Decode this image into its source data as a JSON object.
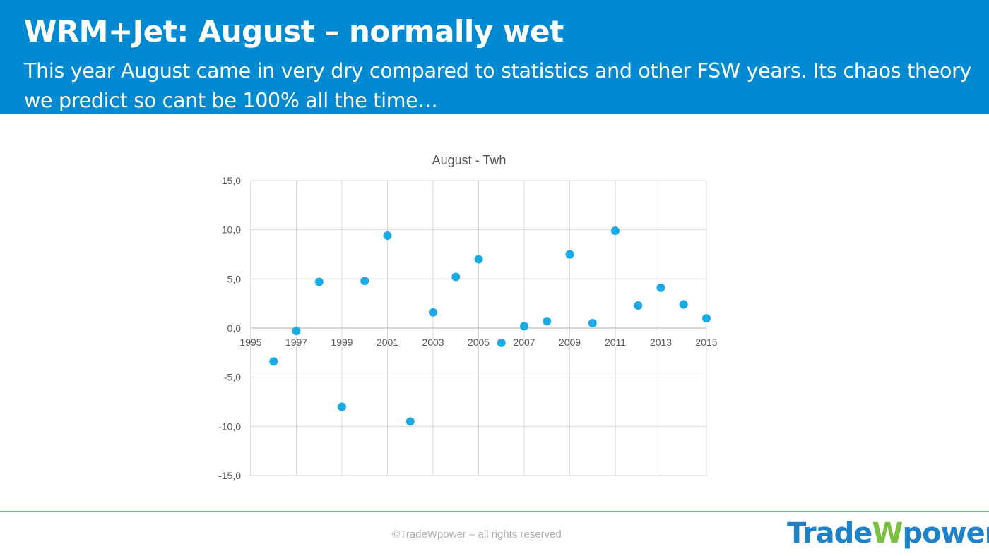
{
  "header": {
    "title": "WRM+Jet: August – normally wet",
    "subtitle": "This year August came in very dry compared to statistics and other FSW years. Its chaos theory we predict so cant be 100% all the time…"
  },
  "chart_data": {
    "type": "scatter",
    "title": "August - Twh",
    "xlabel": "",
    "ylabel": "",
    "xlim": [
      1995,
      2015
    ],
    "ylim": [
      -15,
      15
    ],
    "x_ticks": [
      "1995",
      "1997",
      "1999",
      "2001",
      "2003",
      "2005",
      "2007",
      "2009",
      "2011",
      "2013",
      "2015"
    ],
    "y_ticks": [
      "15,0",
      "10,0",
      "5,0",
      "0,0",
      "-5,0",
      "-10,0",
      "-15,0"
    ],
    "grid": true,
    "legend": "none",
    "marker_color": "#1aaae6",
    "x": [
      1996,
      1997,
      1998,
      1999,
      2000,
      2001,
      2002,
      2003,
      2004,
      2005,
      2006,
      2007,
      2008,
      2009,
      2010,
      2011,
      2012,
      2013,
      2014,
      2015
    ],
    "y": [
      -3.4,
      -0.3,
      4.7,
      -8.0,
      4.8,
      9.4,
      -9.5,
      1.6,
      5.2,
      7.0,
      -1.5,
      0.2,
      0.7,
      7.5,
      0.5,
      9.9,
      2.3,
      4.1,
      2.4,
      1.0
    ]
  },
  "footer": {
    "copyright": "©TradeWpower – all rights reserved",
    "logo_part1": "Trade",
    "logo_w": "W",
    "logo_part2": "power",
    "accent_color": "#7cc242"
  }
}
